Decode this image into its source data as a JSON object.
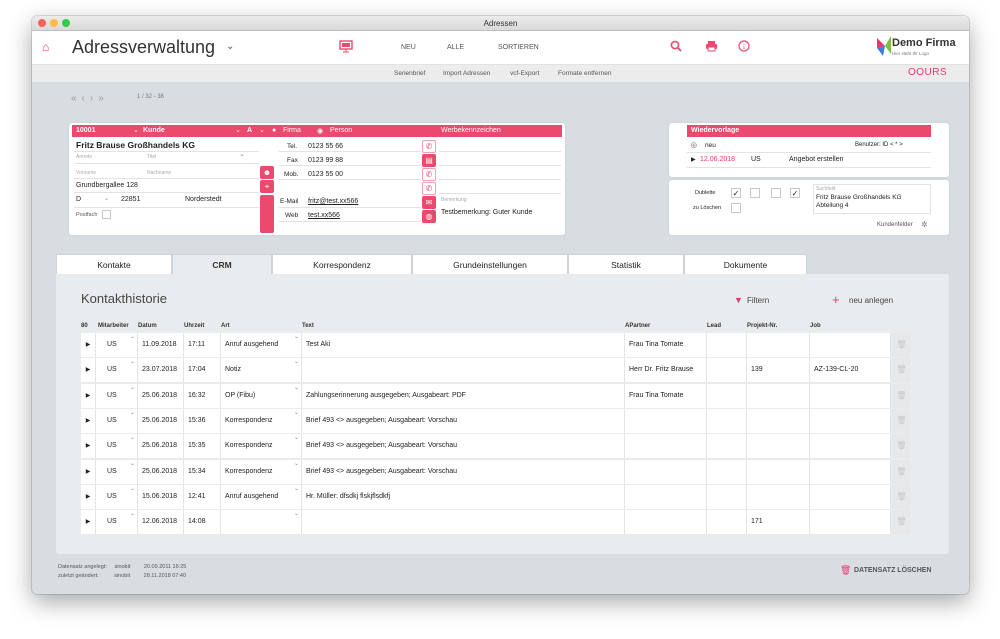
{
  "window": {
    "title": "Adressen"
  },
  "header": {
    "title": "Adressverwaltung",
    "nav": [
      "NEU",
      "ALLE",
      "SORTIEREN"
    ],
    "brand": "Demo Firma",
    "brand_sub": "Hier steht Ihr Logo",
    "brand_right": "OOURS"
  },
  "subnav": [
    "Serienbrief",
    "Import Adressen",
    "vcf-Export",
    "Formate entfernen"
  ],
  "pager": {
    "text": "1 / 32 - 36"
  },
  "contact": {
    "id": "10001",
    "type": "Kunde",
    "salutation_code": "A",
    "radio_firma": "Firma",
    "radio_person": "Person",
    "werbe": "Werbekennzeichen",
    "company": "Fritz Brause Großhandels KG",
    "ph_anrede": "Anrede",
    "ph_titel": "Titel",
    "ph_vorname": "Vorname",
    "ph_nachname": "Nachname",
    "street": "Grundbergallee 128",
    "country": "D",
    "zip": "22851",
    "city": "Norderstedt",
    "postfach": "Postfach",
    "tel_label": "Tel.",
    "tel": "0123 55 66",
    "fax_label": "Fax",
    "fax": "0123 99 88",
    "mob_label": "Mob.",
    "mob": "0123 55 00",
    "email_label": "E-Mail",
    "email": "fritz@test.xx566",
    "web_label": "Web",
    "web": "test.xx566",
    "bem_label": "Bemerkung",
    "bem": "Testbemerkung: Guter Kunde"
  },
  "wiedervorlage": {
    "title": "Wiedervorlage",
    "new": "neu",
    "user": "Benutzer: ID  < * >",
    "date": "12.06.2018",
    "uid": "US",
    "text": "Angebot erstellen"
  },
  "dubletten": {
    "dublette": "Dublette",
    "zu_loeschen": "zu Löschen",
    "suchfeld_label": "Suchfeld",
    "suchfeld": "Fritz Brause Großhandels KG\nAbteilung 4",
    "kundenfelder": "Kundenfelder"
  },
  "tabs": [
    "Kontakte",
    "CRM",
    "Korrespondenz",
    "Grundeinstellungen",
    "Statistik",
    "Dokumente"
  ],
  "history": {
    "title": "Kontakthistorie",
    "filter": "Filtern",
    "new": "neu anlegen",
    "columns": [
      "80",
      "Mitarbeiter",
      "Datum",
      "Uhrzeit",
      "Art",
      "Text",
      "APartner",
      "Lead",
      "Projekt-Nr.",
      "Job"
    ],
    "rows": [
      [
        "US",
        "11.09.2018",
        "17:11",
        "Anruf ausgehend",
        "Test Aki",
        "Frau Tina Tomate",
        "",
        "",
        ""
      ],
      [
        "US",
        "23.07.2018",
        "17:04",
        "Notiz",
        "",
        "Herr Dr. Fritz Brause",
        "",
        "139",
        "AZ-139-CL-20"
      ],
      [
        "US",
        "25.06.2018",
        "16:32",
        "OP (Fibu)",
        "Zahlungserinnerung ausgegeben; Ausgabeart: PDF",
        "Frau Tina Tomate",
        "",
        "",
        ""
      ],
      [
        "US",
        "25.06.2018",
        "15:36",
        "Korrespondenz",
        "Brief 493 <> ausgegeben; Ausgabeart: Vorschau",
        "",
        "",
        "",
        ""
      ],
      [
        "US",
        "25.06.2018",
        "15:35",
        "Korrespondenz",
        "Brief 493 <> ausgegeben; Ausgabeart: Vorschau",
        "",
        "",
        "",
        ""
      ],
      [
        "US",
        "25.06.2018",
        "15:34",
        "Korrespondenz",
        "Brief 493 <> ausgegeben; Ausgabeart: Vorschau",
        "",
        "",
        "",
        ""
      ],
      [
        "US",
        "15.06.2018",
        "12:41",
        "Anruf ausgehend",
        "Hr. Müller: dfsdkj flskjflsdkfj",
        "",
        "",
        "",
        ""
      ],
      [
        "US",
        "12.06.2018",
        "14:08",
        "",
        "",
        "",
        "",
        "171",
        ""
      ]
    ]
  },
  "footer": {
    "created_label": "Datensatz angelegt:",
    "created_user": "sinobit",
    "created_date": "20.09.2011 16:25",
    "changed_label": "zuletzt geändert:",
    "changed_user": "sinobit",
    "changed_date": "28.11.2018 07:40",
    "delete": "DATENSATZ LÖSCHEN"
  },
  "colors": {
    "accent": "#ea4a6e",
    "bg": "#d8dde2"
  }
}
